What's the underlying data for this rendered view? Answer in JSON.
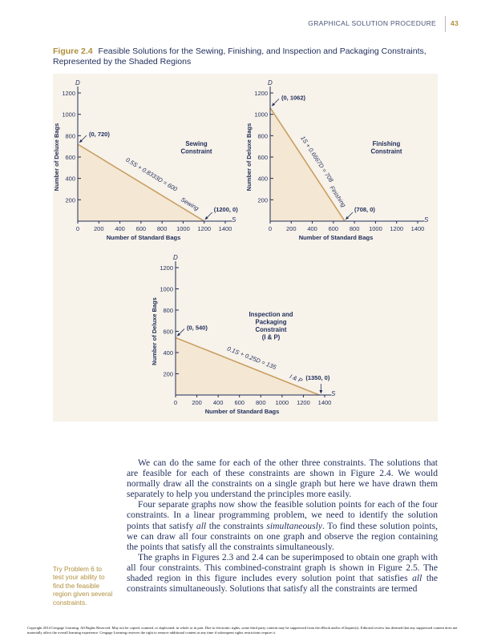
{
  "header": {
    "running_title": "GRAPHICAL SOLUTION PROCEDURE",
    "page_number": "43"
  },
  "figure": {
    "label": "Figure 2.4",
    "caption": "Feasible Solutions for the Sewing, Finishing, and Inspection and Packaging Constraints, Represented by the Shaded Regions"
  },
  "colors": {
    "text": "#1f2d5a",
    "accent": "#b08f3c",
    "panel": "#f7f2ea",
    "shade": "#f3e3cd",
    "line": "#c9a063"
  },
  "chart_data": [
    {
      "type": "line",
      "title": "Sewing Constraint",
      "title_lines": [
        "Sewing",
        "Constraint"
      ],
      "xlabel": "Number of Standard Bags",
      "ylabel": "Number of Deluxe Bags",
      "x_var": "S",
      "y_var": "D",
      "xlim": [
        0,
        1400
      ],
      "ylim": [
        0,
        1200
      ],
      "xticks": [
        0,
        200,
        400,
        600,
        800,
        1000,
        1200,
        1400
      ],
      "yticks": [
        200,
        400,
        600,
        800,
        1000,
        1200
      ],
      "line": {
        "x": [
          0,
          1200
        ],
        "y": [
          720,
          0
        ]
      },
      "shaded": "below-line",
      "equation": "0.5S + 0.8333D = 600",
      "line_label": "Sewing",
      "points": [
        {
          "label": "(0, 720)",
          "x": 0,
          "y": 720
        },
        {
          "label": "(1200, 0)",
          "x": 1200,
          "y": 0
        }
      ]
    },
    {
      "type": "line",
      "title": "Finishing Constraint",
      "title_lines": [
        "Finishing",
        "Constraint"
      ],
      "xlabel": "Number of Standard Bags",
      "ylabel": "Number of Deluxe Bags",
      "x_var": "S",
      "y_var": "D",
      "xlim": [
        0,
        1400
      ],
      "ylim": [
        0,
        1200
      ],
      "xticks": [
        0,
        200,
        400,
        600,
        800,
        1000,
        1200,
        1400
      ],
      "yticks": [
        200,
        400,
        600,
        800,
        1000,
        1200
      ],
      "line": {
        "x": [
          0,
          708
        ],
        "y": [
          1062,
          0
        ]
      },
      "shaded": "below-line",
      "equation": "1S + 0.6667D = 708",
      "line_label": "Finishing",
      "points": [
        {
          "label": "(0, 1062)",
          "x": 0,
          "y": 1062
        },
        {
          "label": "(708, 0)",
          "x": 708,
          "y": 0
        }
      ]
    },
    {
      "type": "line",
      "title": "Inspection and Packaging Constraint (I & P)",
      "title_lines": [
        "Inspection and",
        "Packaging",
        "Constraint",
        "(I & P)"
      ],
      "xlabel": "Number of Standard Bags",
      "ylabel": "Number of Deluxe Bags",
      "x_var": "S",
      "y_var": "D",
      "xlim": [
        0,
        1400
      ],
      "ylim": [
        0,
        1200
      ],
      "xticks": [
        0,
        200,
        400,
        600,
        800,
        1000,
        1200,
        1400
      ],
      "yticks": [
        200,
        400,
        600,
        800,
        1000,
        1200
      ],
      "line": {
        "x": [
          0,
          1350
        ],
        "y": [
          540,
          0
        ]
      },
      "shaded": "below-line",
      "equation": "0.1S + 0.25D = 135",
      "line_label": "I & P",
      "points": [
        {
          "label": "(0, 540)",
          "x": 0,
          "y": 540
        },
        {
          "label": "(1350, 0)",
          "x": 1350,
          "y": 0
        }
      ]
    }
  ],
  "body": {
    "paragraphs": [
      "We can do the same for each of the other three constraints. The solutions that are feasible for each of these constraints are shown in Figure 2.4. We would normally draw all the constraints on a single graph but here we have drawn them separately to help you understand the principles more easily.",
      [
        "Four separate graphs now show the feasible solution points for each of the four constraints. In a linear programming problem, we need to identify the solution points that satisfy ",
        "all",
        " the constraints ",
        "simultaneously",
        ". To find these solution points, we can draw all four constraints on one graph and observe the region containing the points that satisfy all the constraints simultaneously."
      ],
      [
        "The graphs in Figures 2.3 and 2.4 can be superimposed to obtain one graph with all four constraints. This combined-constraint graph is shown in Figure 2.5. The shaded region in this figure includes every solution point that satisfies ",
        "all",
        " the constraints simultaneously. Solutions that satisfy all the constraints are termed"
      ]
    ]
  },
  "margin_note": "Try Problem 6 to test your ability to find the feasible region given several constraints.",
  "copyright": "Copyright 2014 Cengage Learning. All Rights Reserved. May not be copied, scanned, or duplicated, in whole or in part. Due to electronic rights, some third party content may be suppressed from the eBook and/or eChapter(s). Editorial review has deemed that any suppressed content does not materially affect the overall learning experience. Cengage Learning reserves the right to remove additional content at any time if subsequent rights restrictions require it."
}
